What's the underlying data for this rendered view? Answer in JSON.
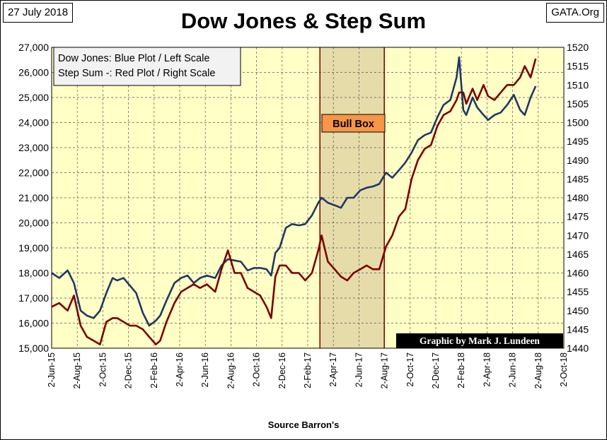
{
  "header": {
    "date": "27 July 2018",
    "source": "GATA.Org",
    "title": "Dow Jones & Step Sum"
  },
  "chart_data": {
    "type": "line",
    "title": "Dow Jones & Step Sum",
    "xlabel": "Source Barron's",
    "legend": {
      "lines": [
        "Dow Jones: Blue Plot / Left Scale",
        "Step Sum -: Red Plot / Right Scale"
      ],
      "placement": "top-left"
    },
    "annotation_box": {
      "label": "Bull Box",
      "x_start": "2017-03-01",
      "x_end": "2017-08-01"
    },
    "credit": "Graphic by Mark J. Lundeen",
    "x_ticks": [
      "2-Jun-15",
      "2-Aug-15",
      "2-Oct-15",
      "2-Dec-15",
      "2-Feb-16",
      "2-Apr-16",
      "2-Jun-16",
      "2-Aug-16",
      "2-Oct-16",
      "2-Dec-16",
      "2-Feb-17",
      "2-Apr-17",
      "2-Jun-17",
      "2-Aug-17",
      "2-Oct-17",
      "2-Dec-17",
      "2-Feb-18",
      "2-Apr-18",
      "2-Jun-18",
      "2-Aug-18",
      "2-Oct-18"
    ],
    "left_axis": {
      "ylim": [
        15000,
        27000
      ],
      "ticks": [
        "15,000",
        "16,000",
        "17,000",
        "18,000",
        "19,000",
        "20,000",
        "21,000",
        "22,000",
        "23,000",
        "24,000",
        "25,000",
        "26,000",
        "27,000"
      ]
    },
    "right_axis": {
      "ylim": [
        1440,
        1520
      ],
      "ticks": [
        "1440",
        "1445",
        "1450",
        "1455",
        "1460",
        "1465",
        "1470",
        "1475",
        "1480",
        "1485",
        "1490",
        "1495",
        "1500",
        "1505",
        "1510",
        "1515",
        "1520"
      ]
    },
    "grid": true,
    "colors": {
      "plot_bg": "#ffffc6",
      "dow": "#1f3864",
      "step": "#7b0000",
      "bull_box": "#e6dcaa",
      "bull_label_bg": "#f79646"
    },
    "series": [
      {
        "name": "Dow Jones",
        "axis": "left",
        "x": [
          "2015-06-02",
          "2015-06-20",
          "2015-07-10",
          "2015-07-25",
          "2015-08-10",
          "2015-08-25",
          "2015-09-10",
          "2015-09-25",
          "2015-10-10",
          "2015-10-25",
          "2015-11-05",
          "2015-11-20",
          "2015-12-05",
          "2015-12-20",
          "2016-01-05",
          "2016-01-20",
          "2016-02-05",
          "2016-02-15",
          "2016-03-01",
          "2016-03-20",
          "2016-04-05",
          "2016-04-20",
          "2016-05-05",
          "2016-05-20",
          "2016-06-05",
          "2016-06-25",
          "2016-07-10",
          "2016-07-25",
          "2016-08-10",
          "2016-08-25",
          "2016-09-10",
          "2016-09-25",
          "2016-10-10",
          "2016-10-25",
          "2016-11-05",
          "2016-11-15",
          "2016-11-25",
          "2016-12-10",
          "2016-12-25",
          "2017-01-10",
          "2017-01-25",
          "2017-02-10",
          "2017-02-25",
          "2017-03-05",
          "2017-03-20",
          "2017-04-05",
          "2017-04-20",
          "2017-05-05",
          "2017-05-20",
          "2017-06-05",
          "2017-06-20",
          "2017-07-05",
          "2017-07-20",
          "2017-08-05",
          "2017-08-20",
          "2017-09-05",
          "2017-09-20",
          "2017-10-05",
          "2017-10-20",
          "2017-11-05",
          "2017-11-20",
          "2017-12-05",
          "2017-12-20",
          "2018-01-05",
          "2018-01-20",
          "2018-01-26",
          "2018-02-05",
          "2018-02-12",
          "2018-02-27",
          "2018-03-10",
          "2018-03-25",
          "2018-04-05",
          "2018-04-20",
          "2018-05-05",
          "2018-05-20",
          "2018-06-05",
          "2018-06-20",
          "2018-07-01",
          "2018-07-15",
          "2018-07-27"
        ],
        "values": [
          18000,
          17800,
          18100,
          17600,
          16500,
          16300,
          16200,
          16500,
          17200,
          17800,
          17700,
          17800,
          17500,
          17200,
          16400,
          15900,
          16100,
          16300,
          16900,
          17600,
          17800,
          17900,
          17600,
          17800,
          17900,
          17800,
          18300,
          18550,
          18500,
          18450,
          18100,
          18200,
          18200,
          18150,
          17900,
          18800,
          19000,
          19800,
          19950,
          19900,
          19950,
          20300,
          20800,
          21000,
          20800,
          20700,
          20600,
          21000,
          21000,
          21300,
          21400,
          21450,
          21550,
          22000,
          21800,
          22100,
          22400,
          22800,
          23300,
          23500,
          23600,
          24200,
          24700,
          24900,
          25800,
          26600,
          24500,
          24300,
          25000,
          24600,
          24300,
          24100,
          24300,
          24400,
          24700,
          25100,
          24500,
          24300,
          25000,
          25450
        ]
      },
      {
        "name": "Step Sum",
        "axis": "right",
        "x": [
          "2015-06-02",
          "2015-06-20",
          "2015-07-10",
          "2015-07-25",
          "2015-08-10",
          "2015-08-25",
          "2015-09-10",
          "2015-09-25",
          "2015-10-10",
          "2015-10-25",
          "2015-11-05",
          "2015-11-20",
          "2015-12-05",
          "2015-12-20",
          "2016-01-05",
          "2016-01-20",
          "2016-02-05",
          "2016-02-15",
          "2016-03-01",
          "2016-03-20",
          "2016-04-05",
          "2016-04-20",
          "2016-05-05",
          "2016-05-20",
          "2016-06-05",
          "2016-06-25",
          "2016-07-10",
          "2016-07-25",
          "2016-08-10",
          "2016-08-25",
          "2016-09-10",
          "2016-09-25",
          "2016-10-10",
          "2016-10-25",
          "2016-11-05",
          "2016-11-15",
          "2016-11-25",
          "2016-12-10",
          "2016-12-25",
          "2017-01-10",
          "2017-01-25",
          "2017-02-10",
          "2017-02-25",
          "2017-03-05",
          "2017-03-20",
          "2017-04-05",
          "2017-04-20",
          "2017-05-05",
          "2017-05-20",
          "2017-06-05",
          "2017-06-20",
          "2017-07-05",
          "2017-07-20",
          "2017-08-05",
          "2017-08-20",
          "2017-09-05",
          "2017-09-20",
          "2017-10-05",
          "2017-10-20",
          "2017-11-05",
          "2017-11-20",
          "2017-12-05",
          "2017-12-20",
          "2018-01-05",
          "2018-01-20",
          "2018-01-26",
          "2018-02-05",
          "2018-02-12",
          "2018-02-27",
          "2018-03-10",
          "2018-03-25",
          "2018-04-05",
          "2018-04-20",
          "2018-05-05",
          "2018-05-20",
          "2018-06-05",
          "2018-06-20",
          "2018-07-01",
          "2018-07-15",
          "2018-07-27"
        ],
        "values": [
          1451,
          1452,
          1450,
          1454,
          1446,
          1443,
          1442,
          1441,
          1447,
          1448,
          1448,
          1447,
          1446,
          1446,
          1445,
          1443,
          1441,
          1442,
          1447,
          1452,
          1455,
          1456,
          1457,
          1456,
          1457,
          1455,
          1461,
          1466,
          1460,
          1460,
          1456,
          1455,
          1454,
          1451,
          1448,
          1459,
          1462,
          1462,
          1460,
          1460,
          1458,
          1460,
          1466,
          1470,
          1463,
          1461,
          1459,
          1458,
          1460,
          1461,
          1462,
          1461,
          1461,
          1467,
          1470,
          1475,
          1477,
          1485,
          1490,
          1493,
          1494,
          1499,
          1502,
          1503,
          1506,
          1508,
          1508,
          1505,
          1509,
          1506,
          1510,
          1507,
          1506,
          1508,
          1510,
          1510,
          1512,
          1515,
          1512,
          1517
        ]
      }
    ]
  },
  "footer": {
    "source": "Source Barron's"
  }
}
